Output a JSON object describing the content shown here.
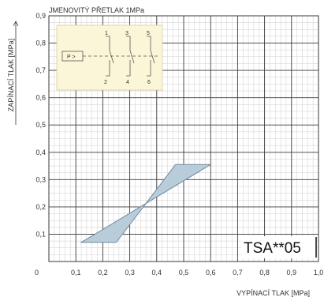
{
  "chart_data": {
    "type": "area",
    "title": "JMENOVITÝ PŘETLAK 1MPa",
    "xlabel": "VYPÍNACÍ TLAK  [MPa]",
    "ylabel": "ZAPÍNACÍ TLAK  [MPa]",
    "x_ticks": [
      "0",
      "0,1",
      "0,2",
      "0,3",
      "0,4",
      "0,5",
      "0,6",
      "0,7",
      "0,8",
      "0,9",
      "1,0"
    ],
    "y_ticks": [
      "0,1",
      "0,2",
      "0,3",
      "0,4",
      "0,5",
      "0,6",
      "0,7",
      "0,8",
      "0,9"
    ],
    "xlim": [
      0,
      1.0
    ],
    "ylim": [
      0,
      0.9
    ],
    "grid": true,
    "series": [
      {
        "polygon": [
          {
            "x": 0.12,
            "y": 0.07
          },
          {
            "x": 0.25,
            "y": 0.07
          },
          {
            "x": 0.47,
            "y": 0.355
          },
          {
            "x": 0.6,
            "y": 0.355
          }
        ],
        "fill": "#b9ccd9",
        "stroke": "#6f8aa0"
      }
    ],
    "annotation": "TSA**05",
    "schematic": {
      "terminals_top": [
        "1",
        "3",
        "5"
      ],
      "terminals_bottom": [
        "2",
        "4",
        "6"
      ],
      "actuator_label": "P >",
      "background": "#fbf6d8"
    }
  }
}
